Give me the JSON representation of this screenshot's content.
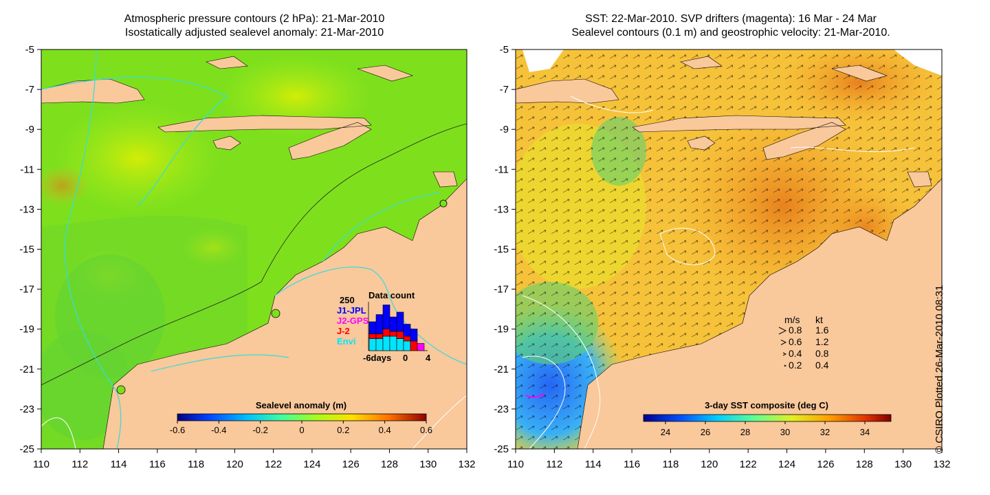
{
  "left_panel": {
    "title_line1": "Atmospheric pressure contours (2 hPa): 21-Mar-2010",
    "title_line2": "Isostatically adjusted sealevel anomaly: 21-Mar-2010",
    "x_ticks": [
      "110",
      "112",
      "114",
      "116",
      "118",
      "120",
      "122",
      "124",
      "126",
      "128",
      "130",
      "132"
    ],
    "y_ticks": [
      "-5",
      "-7",
      "-9",
      "-11",
      "-13",
      "-15",
      "-17",
      "-19",
      "-21",
      "-23",
      "-25"
    ],
    "colorbar_title": "Sealevel anomaly (m)",
    "colorbar_ticks": [
      "-0.6",
      "-0.4",
      "-0.2",
      "0",
      "0.2",
      "0.4",
      "0.6"
    ],
    "inset": {
      "title": "Data count",
      "ymax_label": "250",
      "legend": [
        {
          "label": "J1-JPL",
          "color": "#0000ff"
        },
        {
          "label": "J2-GPS",
          "color": "#ff00ff"
        },
        {
          "label": "J-2",
          "color": "#ff0000"
        },
        {
          "label": "Envi",
          "color": "#00e5ff"
        }
      ],
      "x_labels": [
        "-6days",
        "0",
        "4"
      ],
      "bars": [
        {
          "envi": 0.25,
          "j2": 0.1,
          "j1": 0.25
        },
        {
          "envi": 0.25,
          "j2": 0.1,
          "j1": 0.4
        },
        {
          "envi": 0.3,
          "j2": 0.15,
          "j1": 0.5
        },
        {
          "envi": 0.3,
          "j2": 0.1,
          "j1": 0.3
        },
        {
          "envi": 0.25,
          "j2": 0.15,
          "j1": 0.4
        },
        {
          "envi": 0.2,
          "j2": 0.1,
          "j1": 0.25
        },
        {
          "envi": 0.0,
          "j2": 0.2,
          "j1": 0.25
        },
        {
          "envi": 0.0,
          "j2": 0.15,
          "j1": 0.0
        }
      ]
    }
  },
  "right_panel": {
    "title_line1": "SST: 22-Mar-2010. SVP drifters (magenta): 16 Mar - 24 Mar",
    "title_line2": "Sealevel contours (0.1 m) and geostrophic velocity: 21-Mar-2010.",
    "x_ticks": [
      "110",
      "112",
      "114",
      "116",
      "118",
      "120",
      "122",
      "124",
      "126",
      "128",
      "130",
      "132"
    ],
    "y_ticks": [
      "-5",
      "-7",
      "-9",
      "-11",
      "-13",
      "-15",
      "-17",
      "-19",
      "-21",
      "-23",
      "-25"
    ],
    "colorbar_title": "3-day SST composite (deg C)",
    "colorbar_ticks": [
      "24",
      "26",
      "28",
      "30",
      "32",
      "34"
    ],
    "velocity_legend": {
      "header_ms": "m/s",
      "header_kt": "kt",
      "rows": [
        {
          "ms": "0.8",
          "kt": "1.6"
        },
        {
          "ms": "0.6",
          "kt": "1.2"
        },
        {
          "ms": "0.4",
          "kt": "0.8"
        },
        {
          "ms": "0.2",
          "kt": "0.4"
        }
      ]
    }
  },
  "stamp": "© CSIRO Plotted 26-Mar-2010 08:31",
  "colors": {
    "land": "#f9c89b",
    "ocean_left": "#7ee01c",
    "ocean_right": "#f6c23a",
    "pressure_contour": "#33dddd",
    "drifter": "#ff00ff"
  }
}
